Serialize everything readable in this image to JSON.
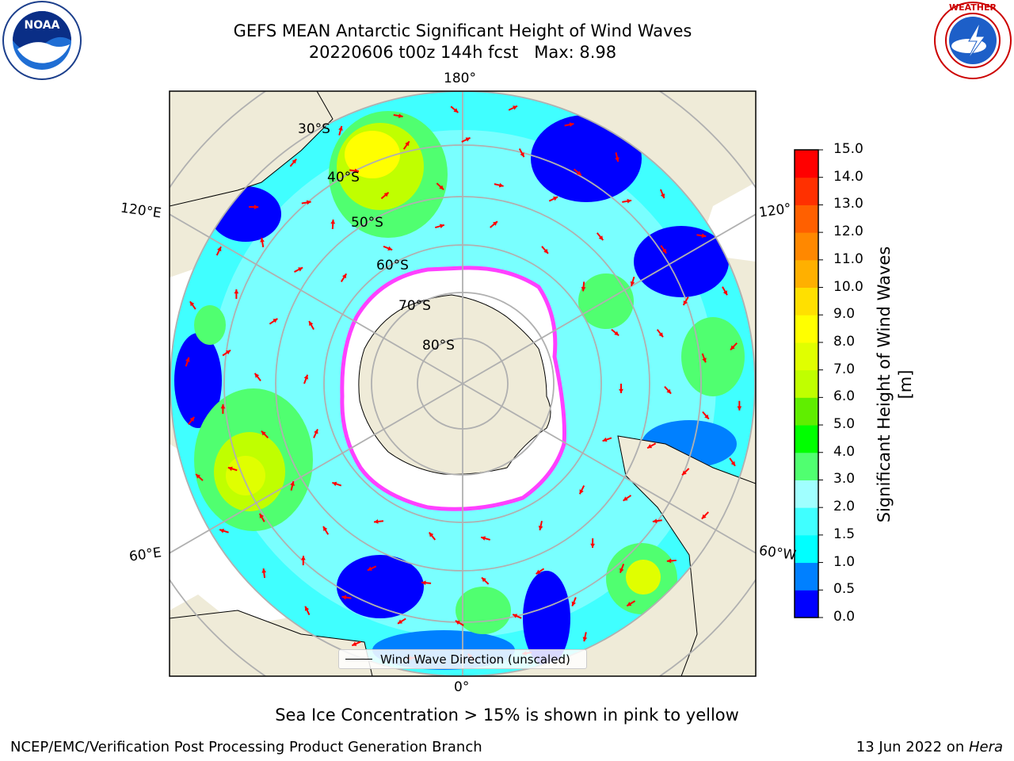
{
  "header": {
    "title_line1": "GEFS MEAN Antarctic Significant Height of Wind Waves",
    "title_line2": "20220606 t00z 144h fcst   Max: 8.98"
  },
  "logos": {
    "left": "noaa-logo",
    "right": "nws-logo"
  },
  "map": {
    "projection": "south-polar-stereographic",
    "longitude_labels": {
      "top": "180°",
      "bottom": "0°",
      "left_upper": "120°E",
      "left_lower": "60°E",
      "right_upper": "120°",
      "right_lower": "60°W"
    },
    "latitude_labels": [
      "30°S",
      "40°S",
      "50°S",
      "60°S",
      "70°S",
      "80°S"
    ],
    "colors": {
      "land": "#efebd8",
      "ice_edge": "#ff40ff",
      "arrows": "#ff0000",
      "gridlines": "#b0b0b0"
    }
  },
  "colorbar": {
    "label": "Significant Height of Wind Waves [m]",
    "ticks": [
      "0.0",
      "0.5",
      "1.0",
      "1.5",
      "2.0",
      "3.0",
      "4.0",
      "5.0",
      "6.0",
      "7.0",
      "8.0",
      "9.0",
      "10.0",
      "11.0",
      "12.0",
      "13.0",
      "14.0",
      "15.0"
    ],
    "colors": [
      "#0000ff",
      "#0080ff",
      "#00ffff",
      "#40ffff",
      "#a0ffff",
      "#50ff70",
      "#00ff00",
      "#60ee00",
      "#c0ff00",
      "#e0ff00",
      "#ffff00",
      "#ffe000",
      "#ffb000",
      "#ff8800",
      "#ff6000",
      "#ff3000",
      "#ff0000"
    ]
  },
  "legend": {
    "label": "Wind Wave Direction (unscaled)"
  },
  "caption": "Sea Ice Concentration > 15% is shown in pink to yellow",
  "footer": {
    "left": "NCEP/EMC/Verification Post Processing Product Generation Branch",
    "right_prefix": "13 Jun 2022 on ",
    "right_machine": "Hera"
  }
}
